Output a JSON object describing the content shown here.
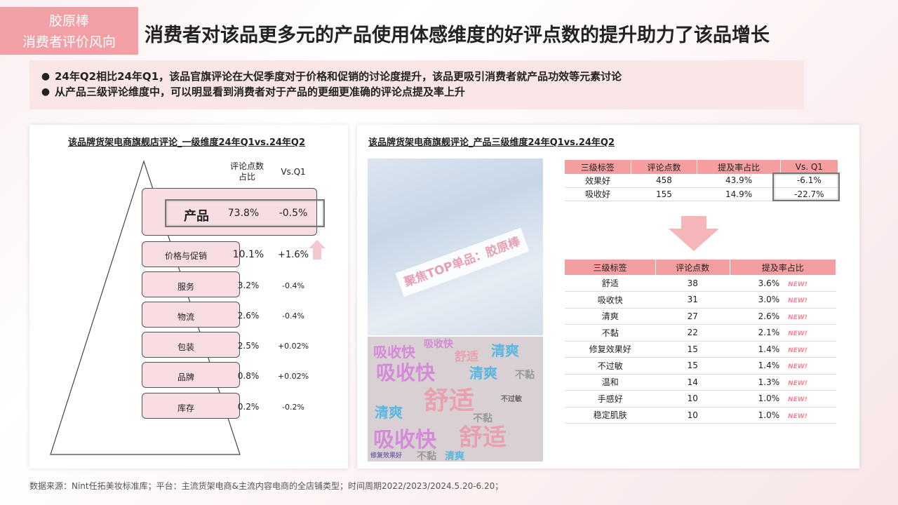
{
  "tag": {
    "line1": "胶原棒",
    "line2": "消费者评价风向"
  },
  "headline": "消费者对该品更多元的产品使用体感维度的好评点数的提升助力了该品增长",
  "bullets": [
    "24年Q2相比24年Q1，该品官旗评论在大促季度对于价格和促销的讨论度提升，该品更吸引消费者就产品功效等元素讨论",
    "从产品三级评论维度中，可以明显看到消费者对于产品的更细更准确的评论点提及率上升"
  ],
  "left": {
    "title": "该品牌货架电商旗舰店评论_一级维度24年Q1vs.24年Q2",
    "col_share": "评论点数\n占比",
    "col_share_l1": "评论点数",
    "col_share_l2": "占比",
    "col_vs": "Vs.Q1",
    "levels": [
      {
        "label": "产品",
        "share": "73.8%",
        "vs": "-0.5%"
      },
      {
        "label": "价格与促销",
        "share": "10.1%",
        "vs": "+1.6%"
      },
      {
        "label": "服务",
        "share": "3.2%",
        "vs": "-0.4%"
      },
      {
        "label": "物流",
        "share": "2.6%",
        "vs": "-0.4%"
      },
      {
        "label": "包装",
        "share": "2.5%",
        "vs": "+0.02%"
      },
      {
        "label": "品牌",
        "share": "0.8%",
        "vs": "+0.02%"
      },
      {
        "label": "库存",
        "share": "0.2%",
        "vs": "-0.2%"
      }
    ]
  },
  "right": {
    "title": "该品牌货架电商旗舰评论_产品三级维度24年Q1vs.24年Q2",
    "banner": "聚焦TOP单品：胶原棒",
    "table1": {
      "headers": [
        "三级标签",
        "评论点数",
        "提及率占比",
        "Vs. Q1"
      ],
      "rows": [
        [
          "效果好",
          "458",
          "43.9%",
          "-6.1%"
        ],
        [
          "吸收好",
          "155",
          "14.9%",
          "-22.7%"
        ]
      ]
    },
    "table2": {
      "headers": [
        "三级标签",
        "评论点数",
        "提及率占比"
      ],
      "new_label": "NEW!",
      "rows": [
        [
          "舒适",
          "38",
          "3.6%"
        ],
        [
          "吸收快",
          "31",
          "3.0%"
        ],
        [
          "清爽",
          "27",
          "2.6%"
        ],
        [
          "不黏",
          "22",
          "2.1%"
        ],
        [
          "修复效果好",
          "15",
          "1.4%"
        ],
        [
          "不过敏",
          "15",
          "1.4%"
        ],
        [
          "温和",
          "14",
          "1.3%"
        ],
        [
          "手感好",
          "10",
          "1.0%"
        ],
        [
          "稳定肌肤",
          "10",
          "1.0%"
        ]
      ]
    },
    "wordcloud": [
      {
        "t": "吸收快",
        "c": "#d48ad8"
      },
      {
        "t": "舒适",
        "c": "#e9a0b0"
      },
      {
        "t": "清爽",
        "c": "#5ab7e0"
      },
      {
        "t": "不黏",
        "c": "#999999"
      },
      {
        "t": "修复效果好",
        "c": "#7a6fb0"
      },
      {
        "t": "不过敏",
        "c": "#666666"
      }
    ]
  },
  "footer": "数据来源：Nint任拓美妆标准库；平台：主流货架电商&主流内容电商的全店铺类型；时间周期2022/2023/2024.5.20-6.20；"
}
